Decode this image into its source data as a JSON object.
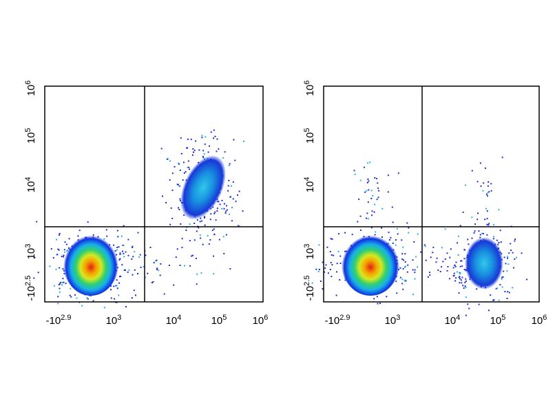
{
  "plots": [
    {
      "xticks": [
        {
          "base": "-10",
          "exp": "2.9"
        },
        {
          "base": "10",
          "exp": "3"
        },
        {
          "base": "10",
          "exp": "4"
        },
        {
          "base": "10",
          "exp": "5"
        },
        {
          "base": "10",
          "exp": "6"
        }
      ],
      "yticks": [
        {
          "base": "-10",
          "exp": "2.5"
        },
        {
          "base": "10",
          "exp": "3"
        },
        {
          "base": "10",
          "exp": "4"
        },
        {
          "base": "10",
          "exp": "5"
        },
        {
          "base": "10",
          "exp": "6"
        }
      ]
    },
    {
      "xticks": [
        {
          "base": "-10",
          "exp": "2.9"
        },
        {
          "base": "10",
          "exp": "3"
        },
        {
          "base": "10",
          "exp": "4"
        },
        {
          "base": "10",
          "exp": "5"
        },
        {
          "base": "10",
          "exp": "6"
        }
      ],
      "yticks": [
        {
          "base": "-10",
          "exp": "2.5"
        },
        {
          "base": "10",
          "exp": "3"
        },
        {
          "base": "10",
          "exp": "4"
        },
        {
          "base": "10",
          "exp": "5"
        },
        {
          "base": "10",
          "exp": "6"
        }
      ]
    }
  ]
}
